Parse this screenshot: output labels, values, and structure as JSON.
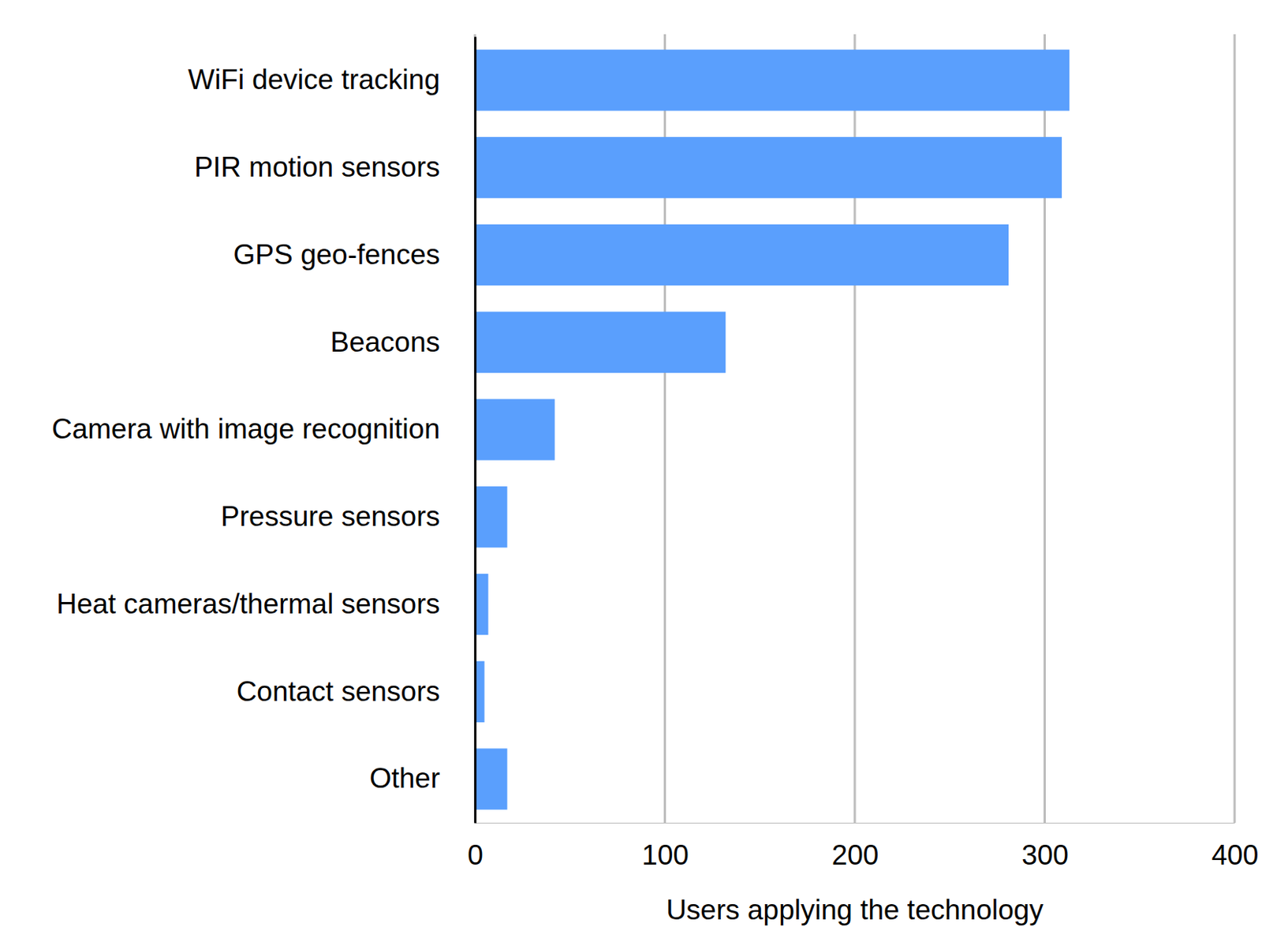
{
  "chart_data": {
    "type": "bar",
    "orientation": "horizontal",
    "categories": [
      "WiFi device tracking",
      "PIR motion sensors",
      "GPS geo-fences",
      "Beacons",
      "Camera with image recognition",
      "Pressure sensors",
      "Heat cameras/thermal sensors",
      "Contact sensors",
      "Other"
    ],
    "values": [
      313,
      309,
      281,
      132,
      42,
      17,
      7,
      5,
      17
    ],
    "color": "#5a9ffd",
    "x_label": "Users applying the technology",
    "xlim": [
      0,
      400
    ],
    "xticks": [
      0,
      100,
      200,
      300,
      400
    ],
    "grid": true
  }
}
